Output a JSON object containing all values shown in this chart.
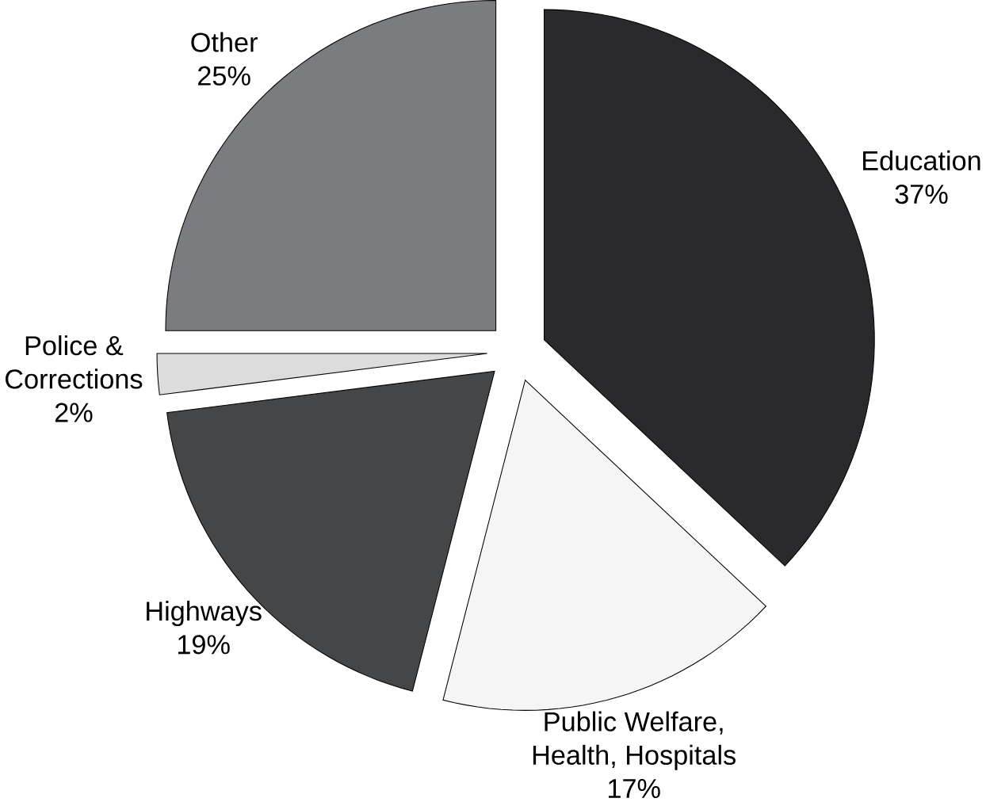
{
  "chart_data": {
    "type": "pie",
    "categories": [
      "Education",
      "Public Welfare, Health, Hospitals",
      "Highways",
      "Police & Corrections",
      "Other"
    ],
    "values": [
      37,
      17,
      19,
      2,
      25
    ],
    "value_labels": [
      "37%",
      "17%",
      "19%",
      "2%",
      "25%"
    ],
    "data_labels": true,
    "colors": [
      "#2a2a2c",
      "#f5f5f5",
      "#454648",
      "#dcdcdc",
      "#7b7c80"
    ]
  }
}
